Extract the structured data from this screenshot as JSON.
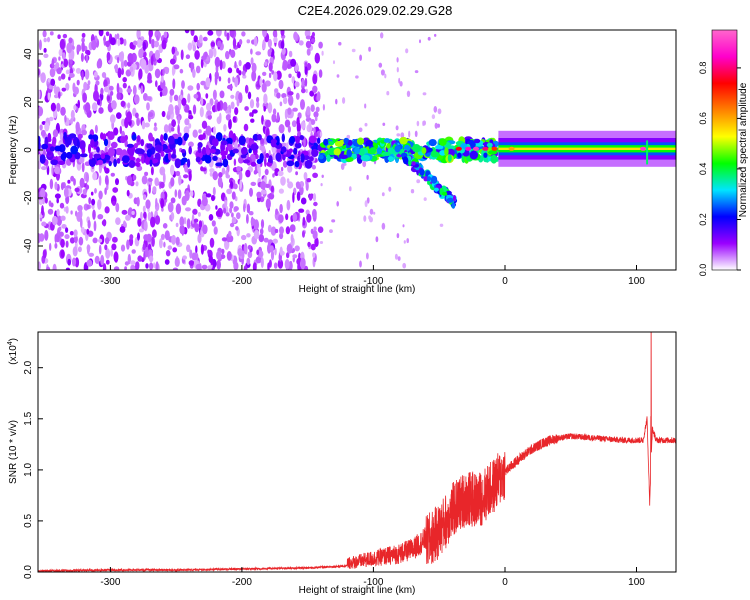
{
  "figure_title": "C2E4.2026.029.02.29.G28",
  "chart_data": [
    {
      "type": "heatmap",
      "title": "",
      "xlabel": "Height of straight line (km)",
      "ylabel": "Frequency (Hz)",
      "xlim": [
        -355,
        130
      ],
      "ylim": [
        -50,
        50
      ],
      "xticks": [
        -300,
        -200,
        -100,
        0,
        100
      ],
      "yticks": [
        -40,
        -20,
        0,
        20,
        40
      ],
      "colorbar": {
        "label": "Normalized spectral amplitude",
        "range": [
          0,
          0.95
        ],
        "ticks": [
          "0.0",
          "0.2",
          "0.4",
          "0.6",
          "0.8"
        ],
        "tick_values": [
          0,
          0.2,
          0.4,
          0.6,
          0.8
        ],
        "colors": [
          "#ffffff",
          "#9a00ff",
          "#0000ff",
          "#00e5ff",
          "#00ff00",
          "#ffff00",
          "#ff8000",
          "#ff0000",
          "#ff00cc",
          "#ff66cc"
        ]
      },
      "features": {
        "noise_region_x": [
          -355,
          -140
        ],
        "central_band_freq": 0,
        "steady_band_start_x": -5,
        "steady_band_end_x": 130,
        "descending_branch": {
          "x": [
            -85,
            -38
          ],
          "freq": [
            2,
            -22
          ]
        },
        "glitch_x": 108
      }
    },
    {
      "type": "line",
      "title": "",
      "xlabel": "Height of straight line (km)",
      "ylabel": "SNR (10 * v/v)",
      "y_scale_label": "(x10",
      "y_scale_exponent": "4",
      "y_scale_suffix": ")",
      "xlim": [
        -355,
        130
      ],
      "ylim": [
        0,
        2.35
      ],
      "xticks": [
        -300,
        -200,
        -100,
        0,
        100
      ],
      "yticks": [
        "0.0",
        "0.5",
        "1.0",
        "1.5",
        "2.0"
      ],
      "ytick_values": [
        0,
        0.5,
        1.0,
        1.5,
        2.0
      ],
      "line_color": "#e8262a",
      "series": [
        {
          "x": [
            -355,
            -300,
            -250,
            -200,
            -150,
            -120,
            -100,
            -80,
            -70,
            -60,
            -50,
            -40,
            -30,
            -20,
            -10,
            0,
            10,
            20,
            30,
            40,
            50,
            60,
            70,
            80,
            90,
            100,
            105,
            108,
            110,
            112,
            115,
            120,
            130
          ],
          "values": [
            0.01,
            0.02,
            0.02,
            0.03,
            0.04,
            0.06,
            0.1,
            0.14,
            0.18,
            0.28,
            0.4,
            0.6,
            0.72,
            0.7,
            0.82,
            0.98,
            1.1,
            1.2,
            1.27,
            1.31,
            1.33,
            1.32,
            1.31,
            1.3,
            1.29,
            1.29,
            1.29,
            1.5,
            0.68,
            1.4,
            1.29,
            1.29,
            1.29
          ]
        }
      ]
    }
  ]
}
